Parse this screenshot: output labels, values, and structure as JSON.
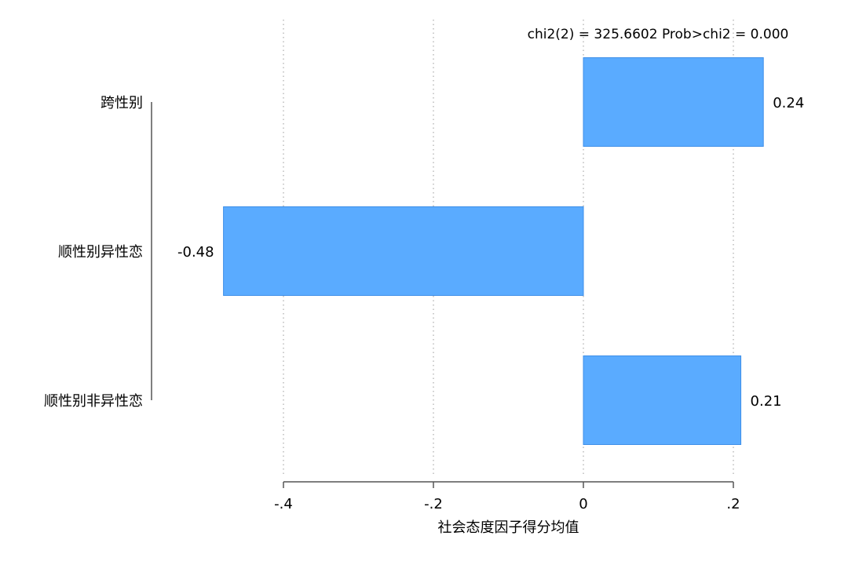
{
  "chart_data": {
    "type": "bar",
    "orientation": "horizontal",
    "annotation": "chi2(2) = 325.6602  Prob>chi2 = 0.000",
    "xlabel": "社会态度因子得分均值",
    "ylabel": "",
    "xlim": [
      -0.4,
      0.2
    ],
    "xticks": [
      -0.4,
      -0.2,
      0,
      0.2
    ],
    "xtick_labels": [
      "-.4",
      "-.2",
      "0",
      ".2"
    ],
    "grid": "vertical dotted",
    "categories": [
      "跨性别",
      "顺性别异性恋",
      "顺性别非异性恋"
    ],
    "values": [
      0.24,
      -0.48,
      0.21
    ],
    "value_labels": [
      "0.24",
      "-0.48",
      "0.21"
    ],
    "bar_color": "#5aabff",
    "bar_edge_color": "#3e8fe8"
  }
}
